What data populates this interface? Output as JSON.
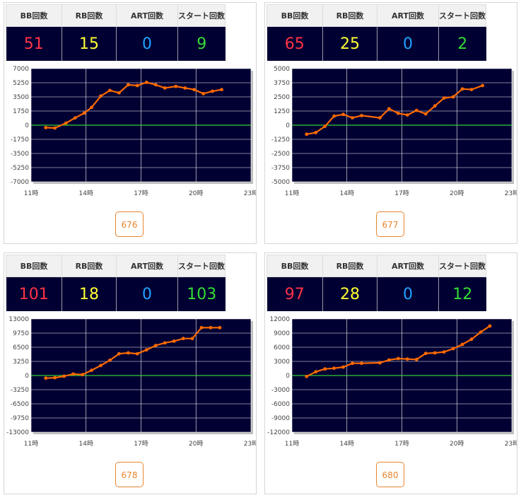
{
  "headers": {
    "bb": "BB回数",
    "rb": "RB回数",
    "art": "ART回数",
    "start": "スタート回数"
  },
  "x_ticks": [
    "11時",
    "14時",
    "17時",
    "20時",
    "23時"
  ],
  "machines": [
    {
      "id": "676",
      "bb": "51",
      "rb": "15",
      "art": "0",
      "start": "9",
      "chart_data": {
        "type": "line",
        "x_range": [
          11,
          23
        ],
        "ylim": [
          -7000,
          7000
        ],
        "yticks": [
          7000,
          5250,
          3500,
          1750,
          0,
          -1750,
          -3500,
          -5250,
          -7000
        ],
        "xticks": [
          "11時",
          "14時",
          "17時",
          "20時",
          "23時"
        ],
        "points": [
          [
            11.8,
            -300
          ],
          [
            12.3,
            -350
          ],
          [
            12.9,
            250
          ],
          [
            13.4,
            900
          ],
          [
            13.9,
            1500
          ],
          [
            14.3,
            2200
          ],
          [
            14.8,
            3600
          ],
          [
            15.3,
            4300
          ],
          [
            15.8,
            4000
          ],
          [
            16.3,
            5000
          ],
          [
            16.8,
            4900
          ],
          [
            17.3,
            5300
          ],
          [
            17.8,
            5000
          ],
          [
            18.3,
            4600
          ],
          [
            18.9,
            4800
          ],
          [
            19.4,
            4600
          ],
          [
            19.9,
            4400
          ],
          [
            20.4,
            3900
          ],
          [
            20.9,
            4200
          ],
          [
            21.4,
            4400
          ]
        ]
      }
    },
    {
      "id": "677",
      "bb": "65",
      "rb": "25",
      "art": "0",
      "start": "2",
      "chart_data": {
        "type": "line",
        "x_range": [
          11,
          23
        ],
        "ylim": [
          -5000,
          5000
        ],
        "yticks": [
          5000,
          3750,
          2500,
          1250,
          0,
          -1250,
          -2500,
          -3750,
          -5000
        ],
        "xticks": [
          "11時",
          "14時",
          "17時",
          "20時",
          "23時"
        ],
        "points": [
          [
            11.8,
            -800
          ],
          [
            12.3,
            -650
          ],
          [
            12.8,
            -100
          ],
          [
            13.3,
            800
          ],
          [
            13.8,
            950
          ],
          [
            14.3,
            650
          ],
          [
            14.8,
            850
          ],
          [
            15.8,
            650
          ],
          [
            16.3,
            1450
          ],
          [
            16.8,
            1050
          ],
          [
            17.3,
            900
          ],
          [
            17.8,
            1300
          ],
          [
            18.3,
            1000
          ],
          [
            18.8,
            1700
          ],
          [
            19.3,
            2400
          ],
          [
            19.8,
            2500
          ],
          [
            20.3,
            3200
          ],
          [
            20.8,
            3150
          ],
          [
            21.4,
            3500
          ]
        ]
      }
    },
    {
      "id": "678",
      "bb": "101",
      "rb": "18",
      "art": "0",
      "start": "103",
      "chart_data": {
        "type": "line",
        "x_range": [
          11,
          23
        ],
        "ylim": [
          -13000,
          13000
        ],
        "yticks": [
          13000,
          9750,
          6500,
          3250,
          0,
          -3250,
          -6500,
          -9750,
          -13000
        ],
        "xticks": [
          "11時",
          "14時",
          "17時",
          "20時",
          "23時"
        ],
        "points": [
          [
            11.8,
            -600
          ],
          [
            12.3,
            -500
          ],
          [
            12.8,
            -150
          ],
          [
            13.3,
            350
          ],
          [
            13.8,
            200
          ],
          [
            14.3,
            1200
          ],
          [
            14.8,
            2300
          ],
          [
            15.3,
            3500
          ],
          [
            15.8,
            5000
          ],
          [
            16.3,
            5200
          ],
          [
            16.8,
            5000
          ],
          [
            17.3,
            5900
          ],
          [
            17.8,
            6900
          ],
          [
            18.3,
            7500
          ],
          [
            18.8,
            7900
          ],
          [
            19.3,
            8500
          ],
          [
            19.8,
            8500
          ],
          [
            20.3,
            11000
          ],
          [
            20.8,
            11000
          ],
          [
            21.3,
            11000
          ]
        ]
      }
    },
    {
      "id": "680",
      "bb": "97",
      "rb": "28",
      "art": "0",
      "start": "12",
      "chart_data": {
        "type": "line",
        "x_range": [
          11,
          23
        ],
        "ylim": [
          -12000,
          12000
        ],
        "yticks": [
          12000,
          9000,
          6000,
          3000,
          0,
          -3000,
          -6000,
          -9000,
          -12000
        ],
        "xticks": [
          "11時",
          "14時",
          "17時",
          "20時",
          "23時"
        ],
        "points": [
          [
            11.8,
            -200
          ],
          [
            12.3,
            800
          ],
          [
            12.8,
            1400
          ],
          [
            13.3,
            1550
          ],
          [
            13.8,
            1800
          ],
          [
            14.3,
            2600
          ],
          [
            14.8,
            2600
          ],
          [
            15.8,
            2700
          ],
          [
            16.3,
            3300
          ],
          [
            16.8,
            3600
          ],
          [
            17.3,
            3500
          ],
          [
            17.8,
            3400
          ],
          [
            18.3,
            4700
          ],
          [
            18.8,
            4800
          ],
          [
            19.3,
            5000
          ],
          [
            19.8,
            5700
          ],
          [
            20.3,
            6600
          ],
          [
            20.8,
            7700
          ],
          [
            21.3,
            9200
          ],
          [
            21.8,
            10500
          ]
        ]
      }
    }
  ]
}
